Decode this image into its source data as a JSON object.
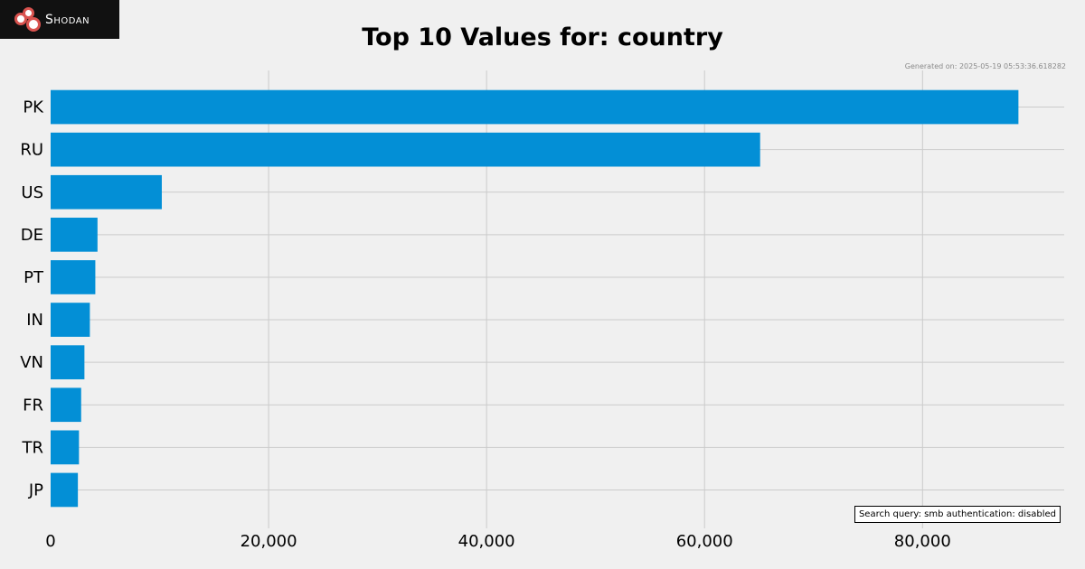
{
  "logo": {
    "text": "Shodan"
  },
  "colors": {
    "bar": "#038fd6",
    "grid": "#cbcbcb",
    "background": "#f0f0f0"
  },
  "generated_text": "Generated on: 2025-05-19 05:53:36.618282",
  "query_text": "Search query: smb authentication: disabled",
  "chart_data": {
    "type": "bar",
    "orientation": "horizontal",
    "title": "Top 10 Values for: country",
    "xlabel": "",
    "ylabel": "",
    "categories": [
      "PK",
      "RU",
      "US",
      "DE",
      "PT",
      "IN",
      "VN",
      "FR",
      "TR",
      "JP"
    ],
    "values": [
      88800,
      65100,
      10200,
      4300,
      4100,
      3600,
      3100,
      2800,
      2600,
      2500
    ],
    "xlim": [
      0,
      93000
    ],
    "xticks": [
      0,
      20000,
      40000,
      60000,
      80000
    ],
    "xtick_labels": [
      "0",
      "20,000",
      "40,000",
      "60,000",
      "80,000"
    ],
    "grid": true
  }
}
